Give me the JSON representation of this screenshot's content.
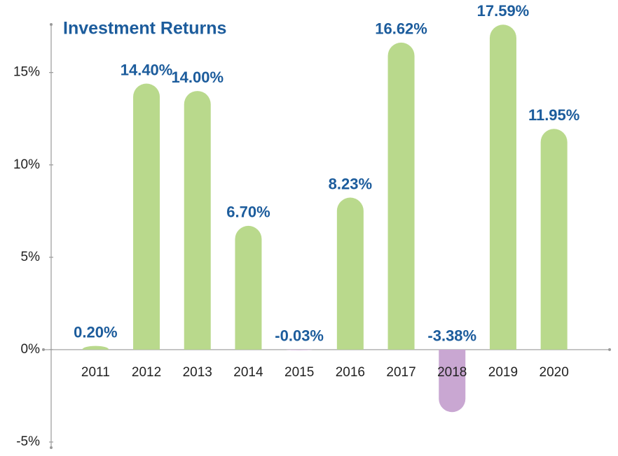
{
  "chart_data": {
    "type": "bar",
    "title": "Investment Returns",
    "categories": [
      "2011",
      "2012",
      "2013",
      "2014",
      "2015",
      "2016",
      "2017",
      "2018",
      "2019",
      "2020"
    ],
    "values": [
      0.2,
      14.4,
      14.0,
      6.7,
      -0.03,
      8.23,
      16.62,
      -3.38,
      17.59,
      11.95
    ],
    "value_labels": [
      "0.20%",
      "14.40%",
      "14.00%",
      "6.70%",
      "-0.03%",
      "8.23%",
      "16.62%",
      "-3.38%",
      "17.59%",
      "11.95%"
    ],
    "color": "#b9d98c",
    "negative_color": "#c9a7d2",
    "ylim": [
      -5,
      17.6
    ],
    "yticks": [
      {
        "value": -5,
        "label": "-5%"
      },
      {
        "value": 0,
        "label": "0%"
      },
      {
        "value": 5,
        "label": "5%"
      },
      {
        "value": 10,
        "label": "10%"
      },
      {
        "value": 15,
        "label": "15%"
      }
    ],
    "grid": false
  }
}
